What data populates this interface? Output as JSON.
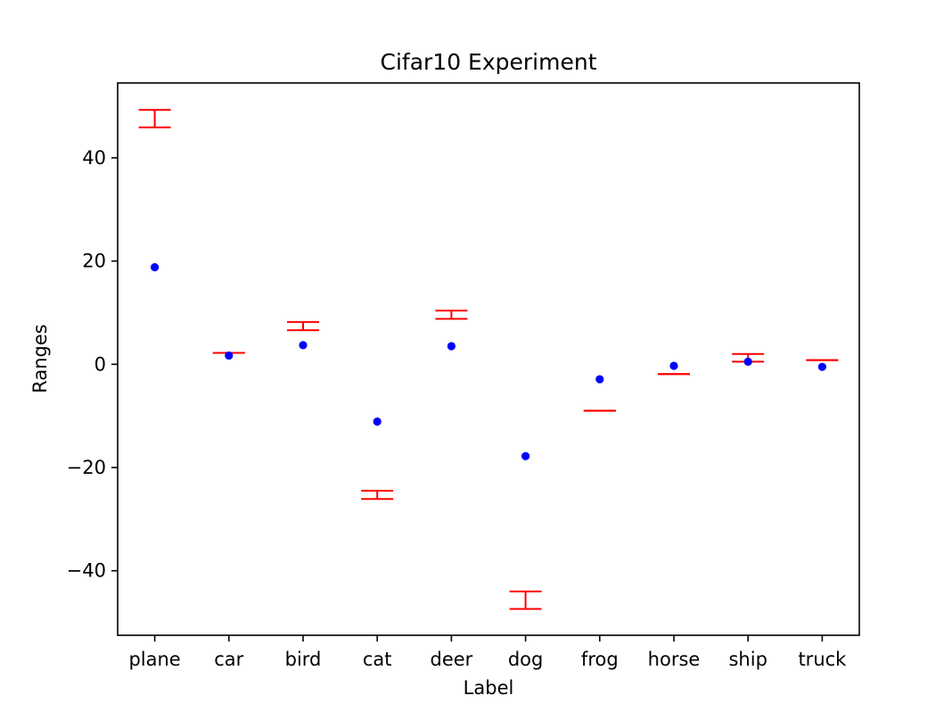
{
  "chart_data": {
    "type": "scatter",
    "title": "Cifar10 Experiment",
    "xlabel": "Label",
    "ylabel": "Ranges",
    "categories": [
      "plane",
      "car",
      "bird",
      "cat",
      "deer",
      "dog",
      "frog",
      "horse",
      "ship",
      "truck"
    ],
    "ylim": [
      -52.5,
      54.5
    ],
    "yticks": [
      40,
      20,
      0,
      -20,
      -40
    ],
    "ytick_labels": [
      "40",
      "20",
      "0",
      "−20",
      "−40"
    ],
    "grid": false,
    "points": [
      18.8,
      1.7,
      3.7,
      -11.1,
      3.5,
      -17.8,
      -2.9,
      -0.3,
      0.5,
      -0.5
    ],
    "ranges": [
      [
        45.9,
        49.3
      ],
      [
        2.2,
        2.2
      ],
      [
        6.6,
        8.2
      ],
      [
        -26.1,
        -24.5
      ],
      [
        8.8,
        10.4
      ],
      [
        -47.4,
        -44.0
      ],
      [
        -9.0,
        -9.0
      ],
      [
        -1.9,
        -1.9
      ],
      [
        0.5,
        2.0
      ],
      [
        0.8,
        0.8
      ]
    ],
    "colors": {
      "points": "#0000ff",
      "ranges": "#ff0000",
      "axes": "#000000"
    }
  }
}
